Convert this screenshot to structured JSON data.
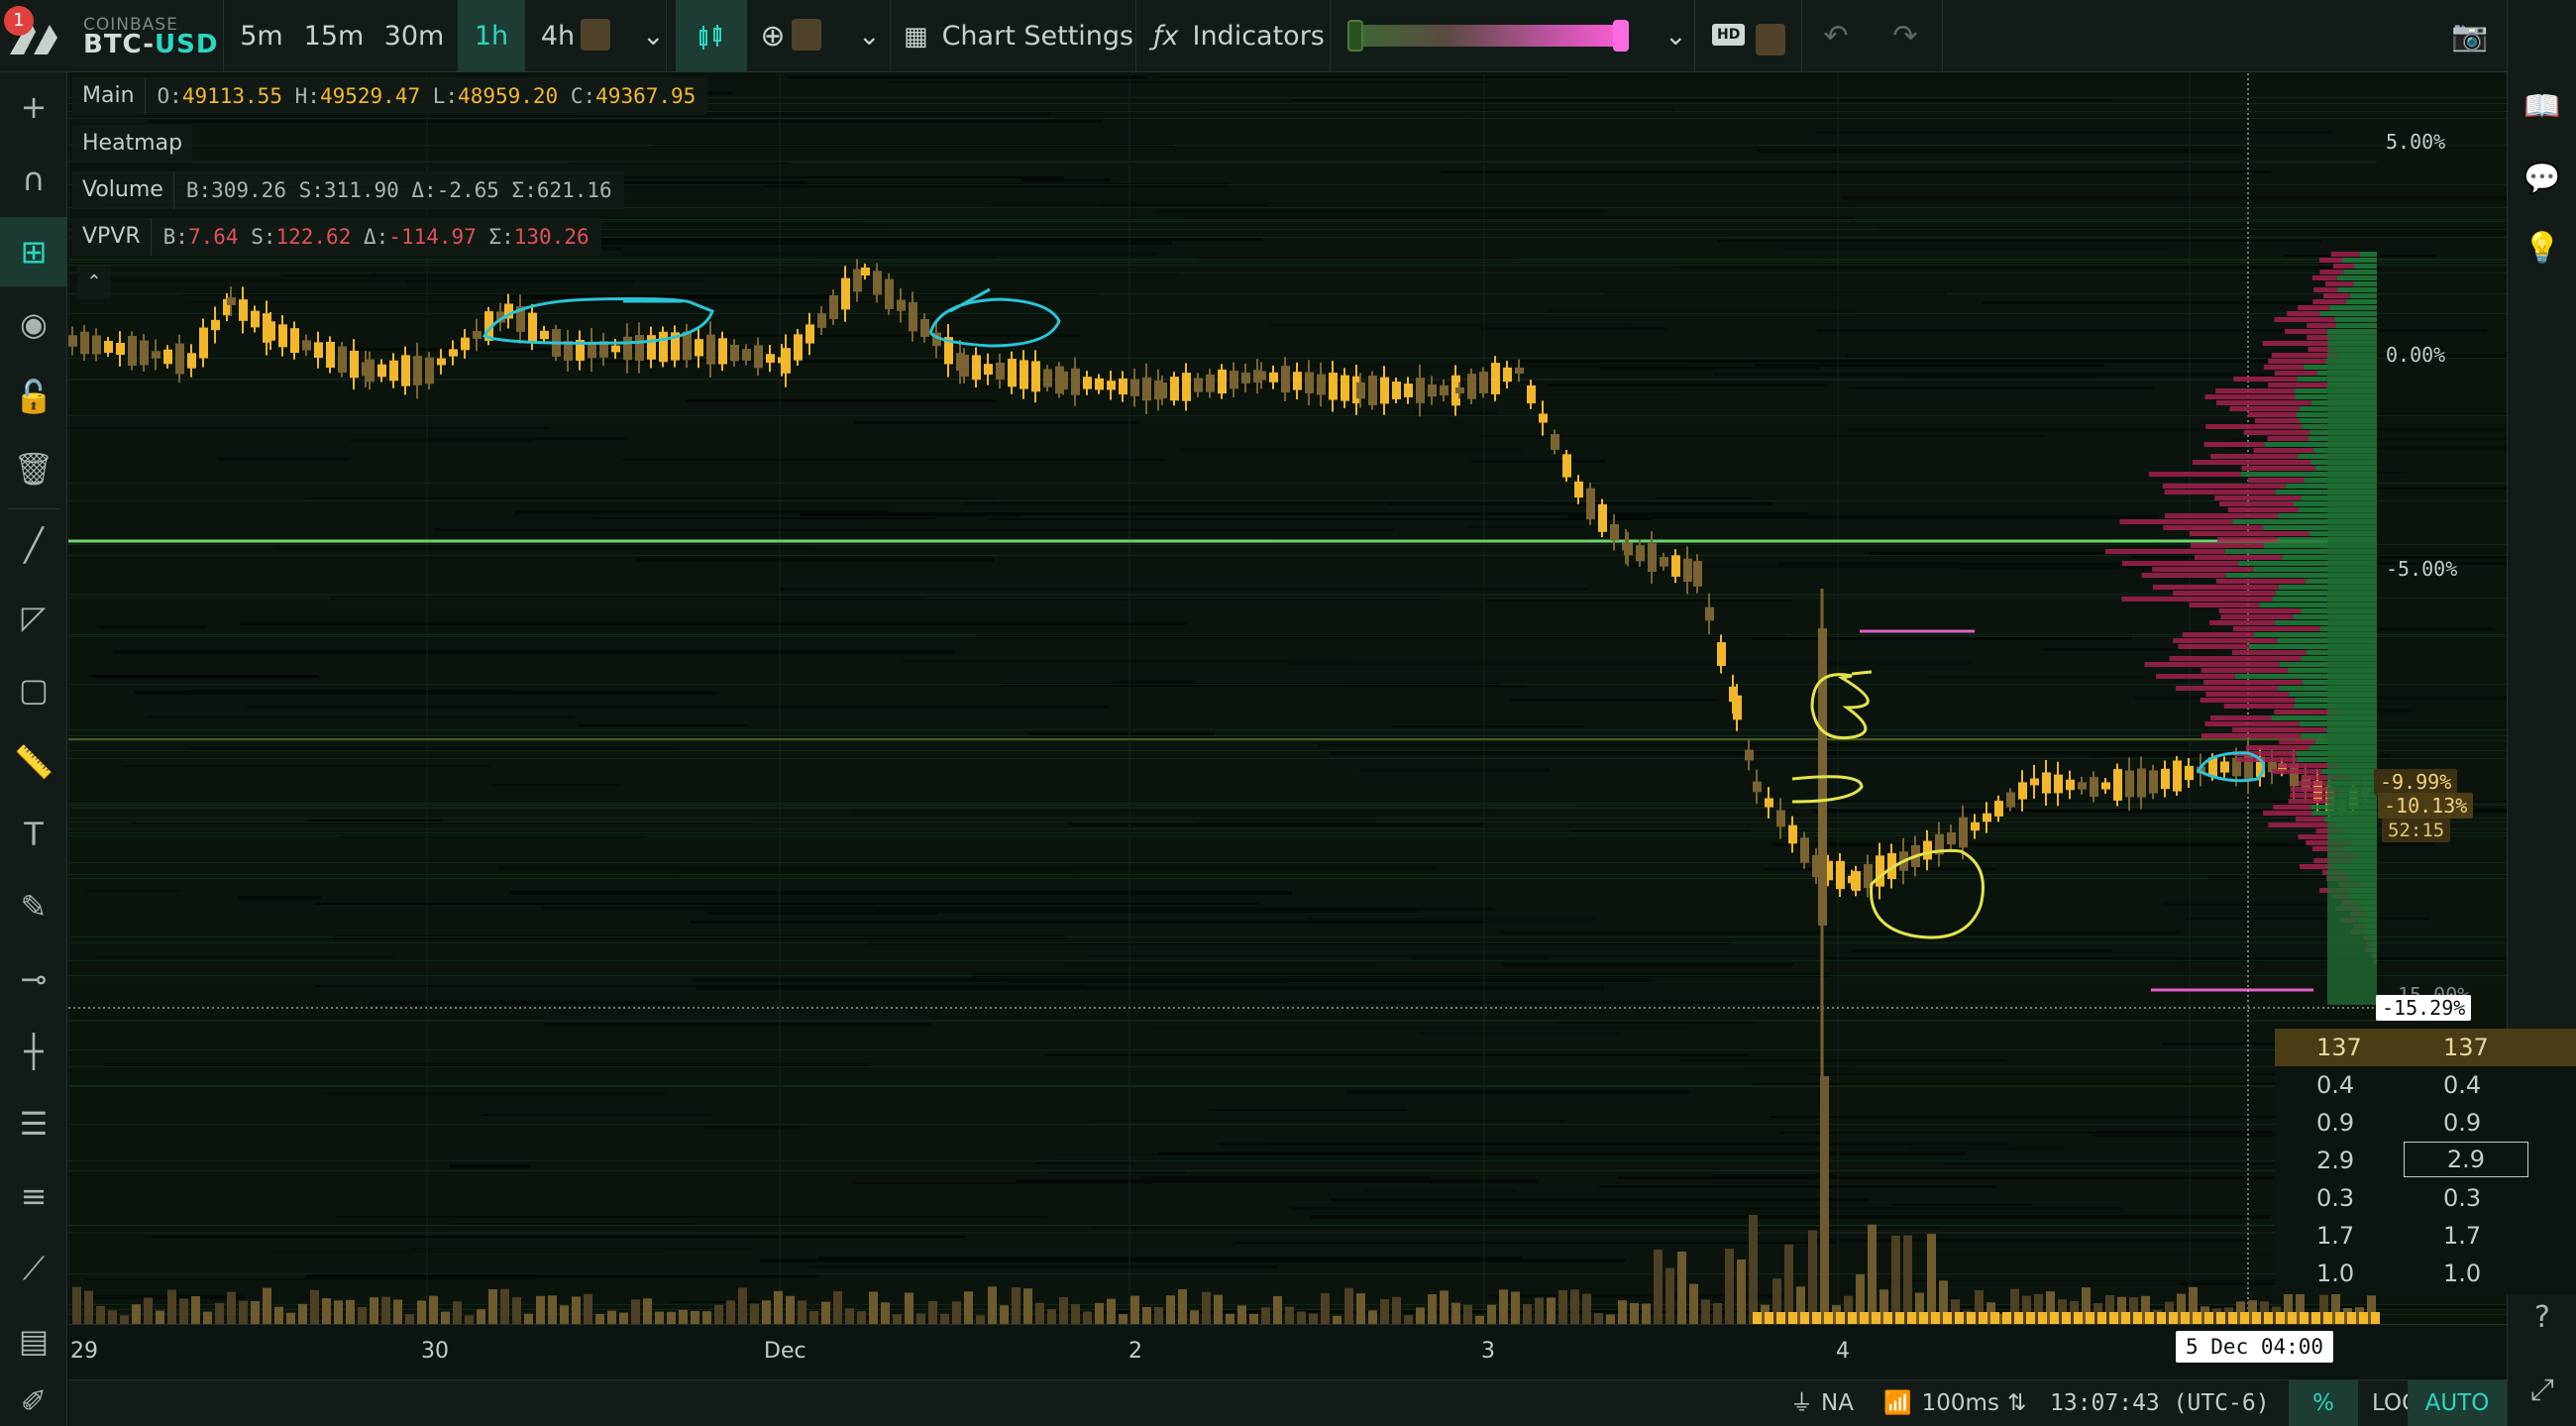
{
  "header": {
    "notification_count": "1",
    "exchange": "COINBASE",
    "pair_base": "BTC-",
    "pair_quote": "USD",
    "timeframes": [
      {
        "label": "5m",
        "active": false,
        "locked": false
      },
      {
        "label": "15m",
        "active": false,
        "locked": false
      },
      {
        "label": "30m",
        "active": false,
        "locked": false
      },
      {
        "label": "1h",
        "active": true,
        "locked": false
      },
      {
        "label": "4h",
        "active": false,
        "locked": true
      }
    ],
    "chart_settings_label": "Chart Settings",
    "indicators_label": "Indicators",
    "hd_label": "HD"
  },
  "legend": {
    "main": {
      "name": "Main",
      "o_k": "O:",
      "o": "49113.55",
      "h_k": "H:",
      "h": "49529.47",
      "l_k": "L:",
      "l": "48959.20",
      "c_k": "C:",
      "c": "49367.95"
    },
    "heatmap": {
      "name": "Heatmap"
    },
    "volume": {
      "name": "Volume",
      "text": "B:309.26  S:311.90  Δ:-2.65  Σ:621.16"
    },
    "vpvr": {
      "name": "VPVR",
      "b_k": "B:",
      "b": "7.64",
      "s_k": "S:",
      "s": "122.62",
      "d_k": "Δ:",
      "d": "-114.97",
      "sum_k": "Σ:",
      "sum": "130.26"
    }
  },
  "price_scale": {
    "labels": [
      "5.00%",
      "0.00%",
      "-5.00%",
      "-15.00%"
    ],
    "last_price_pct": "-9.99%",
    "last_close_pct": "-10.13%",
    "countdown": "52:15",
    "crosshair_pct": "-15.29%"
  },
  "dom_table": {
    "head": [
      "137",
      "137"
    ],
    "rows": [
      [
        "0.4",
        "0.4"
      ],
      [
        "0.9",
        "0.9"
      ],
      [
        "2.9",
        "2.9"
      ],
      [
        "0.3",
        "0.3"
      ],
      [
        "1.7",
        "1.7"
      ],
      [
        "1.0",
        "1.0"
      ]
    ]
  },
  "time_scale": {
    "labels": [
      "29",
      "30",
      "Dec",
      "2",
      "3",
      "4"
    ],
    "crosshair_time": "5 Dec 04:00"
  },
  "status_bar": {
    "region": "NA",
    "latency": "100ms",
    "clock": "13:07:43 (UTC-6)",
    "percent_label": "%",
    "log_label": "LOG",
    "auto_label": "AUTO"
  },
  "colors": {
    "bull": "#f3b72b",
    "bear": "#7a6331",
    "accent": "#2bd6c1",
    "vpvr_buy": "#1f7a3a",
    "vpvr_sell": "#a3204f",
    "support_line": "#6fd46a"
  },
  "icons": {
    "left_toolbar": [
      "crosshair-icon",
      "magnet-icon",
      "heatmap-tool-icon",
      "eye-icon",
      "lock-icon",
      "trash-icon",
      "trend-line-icon",
      "fib-fan-icon",
      "rectangle-icon",
      "ruler-icon",
      "text-icon",
      "brush-icon",
      "horizontal-ray-icon",
      "vertical-line-icon",
      "list-icon",
      "order-book-icon",
      "pencil-line-icon",
      "notes-icon",
      "edit-icon"
    ],
    "right_sidebar": [
      "book-icon",
      "chat-icon",
      "lightbulb-icon",
      "help-icon",
      "expand-icon"
    ]
  }
}
